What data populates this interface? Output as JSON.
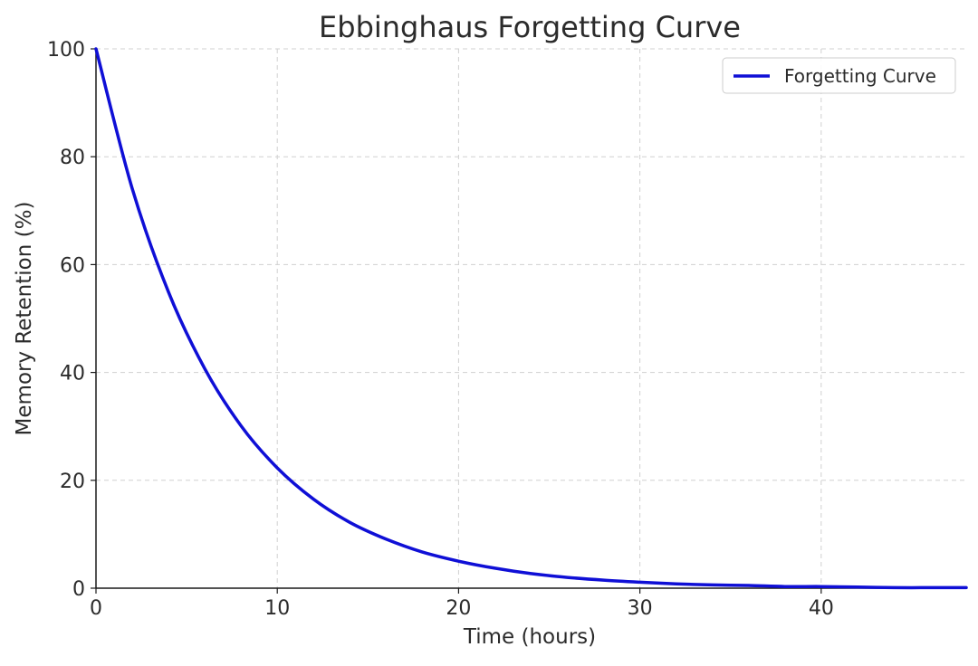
{
  "chart_data": {
    "type": "line",
    "title": "Ebbinghaus Forgetting Curve",
    "xlabel": "Time (hours)",
    "ylabel": "Memory Retention (%)",
    "xlim": [
      0,
      48
    ],
    "ylim": [
      0,
      100
    ],
    "x_ticks": [
      0,
      10,
      20,
      30,
      40
    ],
    "y_ticks": [
      0,
      20,
      40,
      60,
      80,
      100
    ],
    "grid": true,
    "legend_position": "top-right",
    "series": [
      {
        "name": "Forgetting Curve",
        "color": "#0f0fd6",
        "x": [
          0,
          2,
          4,
          6,
          8,
          10,
          12,
          14,
          16,
          18,
          20,
          22,
          24,
          26,
          28,
          30,
          32,
          34,
          36,
          38,
          40,
          42,
          44,
          46,
          48
        ],
        "y": [
          100,
          74.1,
          54.9,
          40.7,
          30.1,
          22.3,
          16.5,
          12.2,
          9.1,
          6.7,
          5.0,
          3.7,
          2.7,
          2.0,
          1.5,
          1.1,
          0.8,
          0.6,
          0.5,
          0.3,
          0.3,
          0.2,
          0.1,
          0.1,
          0.1
        ]
      }
    ]
  }
}
